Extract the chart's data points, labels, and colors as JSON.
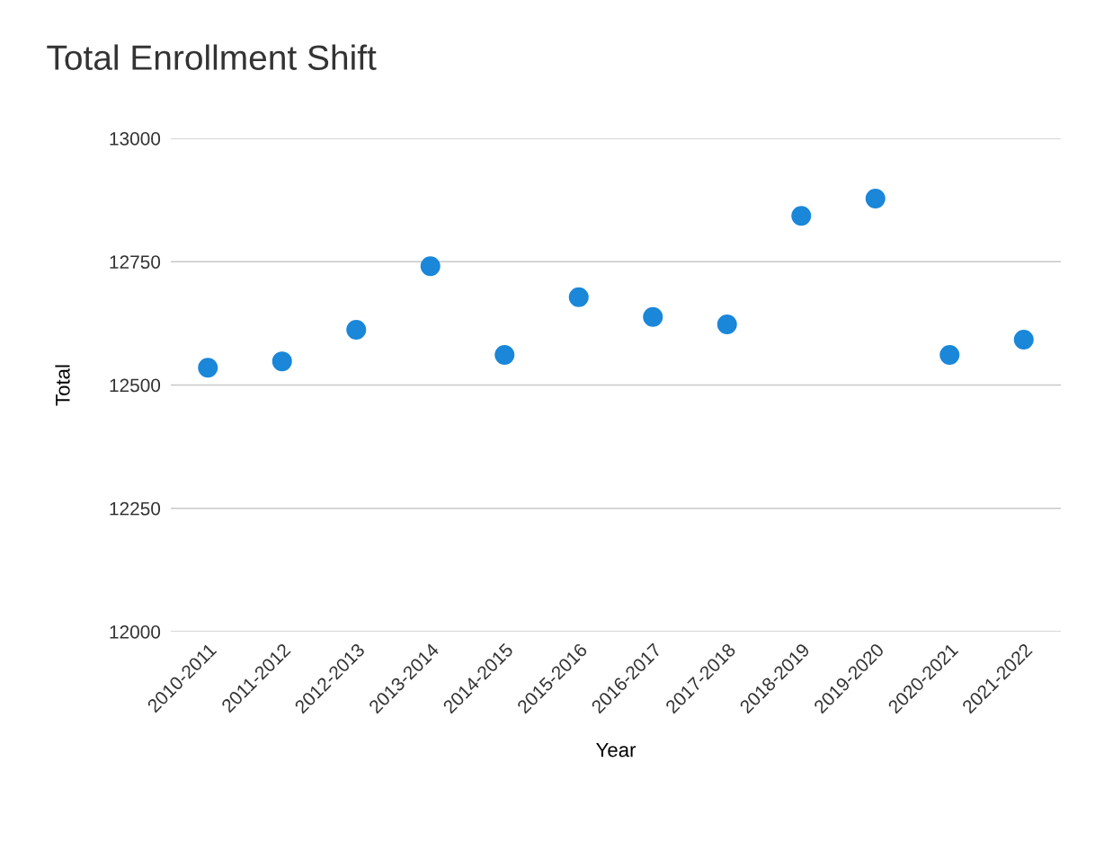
{
  "chart_data": {
    "type": "scatter",
    "title": "Total Enrollment Shift",
    "xlabel": "Year",
    "ylabel": "Total",
    "categories": [
      "2010-2011",
      "2011-2012",
      "2012-2013",
      "2013-2014",
      "2014-2015",
      "2015-2016",
      "2016-2017",
      "2017-2018",
      "2018-2019",
      "2019-2020",
      "2020-2021",
      "2021-2022"
    ],
    "series": [
      {
        "color": "#1a87d9",
        "values": [
          12535,
          12548,
          12612,
          12741,
          12561,
          12678,
          12638,
          12623,
          12843,
          12878,
          12561,
          12592
        ]
      }
    ],
    "ylim": [
      12000,
      13000
    ],
    "yticks": [
      12000,
      12250,
      12500,
      12750,
      13000
    ],
    "grid": "y",
    "marker": "circle",
    "legend": false
  }
}
